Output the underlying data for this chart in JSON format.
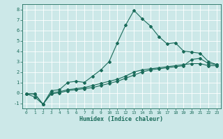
{
  "xlabel": "Humidex (Indice chaleur)",
  "bg_color": "#cce8e8",
  "grid_color": "#ffffff",
  "line_color": "#1a6b5a",
  "xlim": [
    -0.5,
    23.5
  ],
  "ylim": [
    -1.5,
    8.5
  ],
  "yticks": [
    -1,
    0,
    1,
    2,
    3,
    4,
    5,
    6,
    7,
    8
  ],
  "xticks": [
    0,
    1,
    2,
    3,
    4,
    5,
    6,
    7,
    8,
    9,
    10,
    11,
    12,
    13,
    14,
    15,
    16,
    17,
    18,
    19,
    20,
    21,
    22,
    23
  ],
  "line1_x": [
    0,
    1,
    2,
    3,
    4,
    5,
    6,
    7,
    8,
    9,
    10,
    11,
    12,
    13,
    14,
    15,
    16,
    17,
    18,
    19,
    20,
    21,
    22,
    23
  ],
  "line1_y": [
    -0.1,
    -0.4,
    -1.1,
    0.2,
    0.3,
    1.0,
    1.1,
    1.0,
    1.6,
    2.2,
    3.0,
    4.8,
    6.5,
    7.9,
    7.1,
    6.4,
    5.4,
    4.7,
    4.8,
    4.0,
    3.9,
    3.8,
    3.0,
    2.7
  ],
  "line2_x": [
    0,
    1,
    2,
    3,
    4,
    5,
    6,
    7,
    8,
    9,
    10,
    11,
    12,
    13,
    14,
    15,
    16,
    17,
    18,
    19,
    20,
    21,
    22,
    23
  ],
  "line2_y": [
    -0.1,
    -0.1,
    -1.1,
    -0.1,
    0.0,
    0.2,
    0.3,
    0.4,
    0.5,
    0.7,
    0.9,
    1.1,
    1.4,
    1.7,
    2.0,
    2.2,
    2.3,
    2.4,
    2.5,
    2.6,
    3.2,
    3.3,
    2.8,
    2.7
  ],
  "line3_x": [
    0,
    1,
    2,
    3,
    4,
    5,
    6,
    7,
    8,
    9,
    10,
    11,
    12,
    13,
    14,
    15,
    16,
    17,
    18,
    19,
    20,
    21,
    22,
    23
  ],
  "line3_y": [
    -0.1,
    -0.1,
    -1.1,
    0.0,
    0.1,
    0.3,
    0.4,
    0.5,
    0.7,
    0.9,
    1.1,
    1.3,
    1.6,
    2.0,
    2.2,
    2.3,
    2.4,
    2.5,
    2.6,
    2.7,
    2.8,
    2.8,
    2.6,
    2.6
  ]
}
